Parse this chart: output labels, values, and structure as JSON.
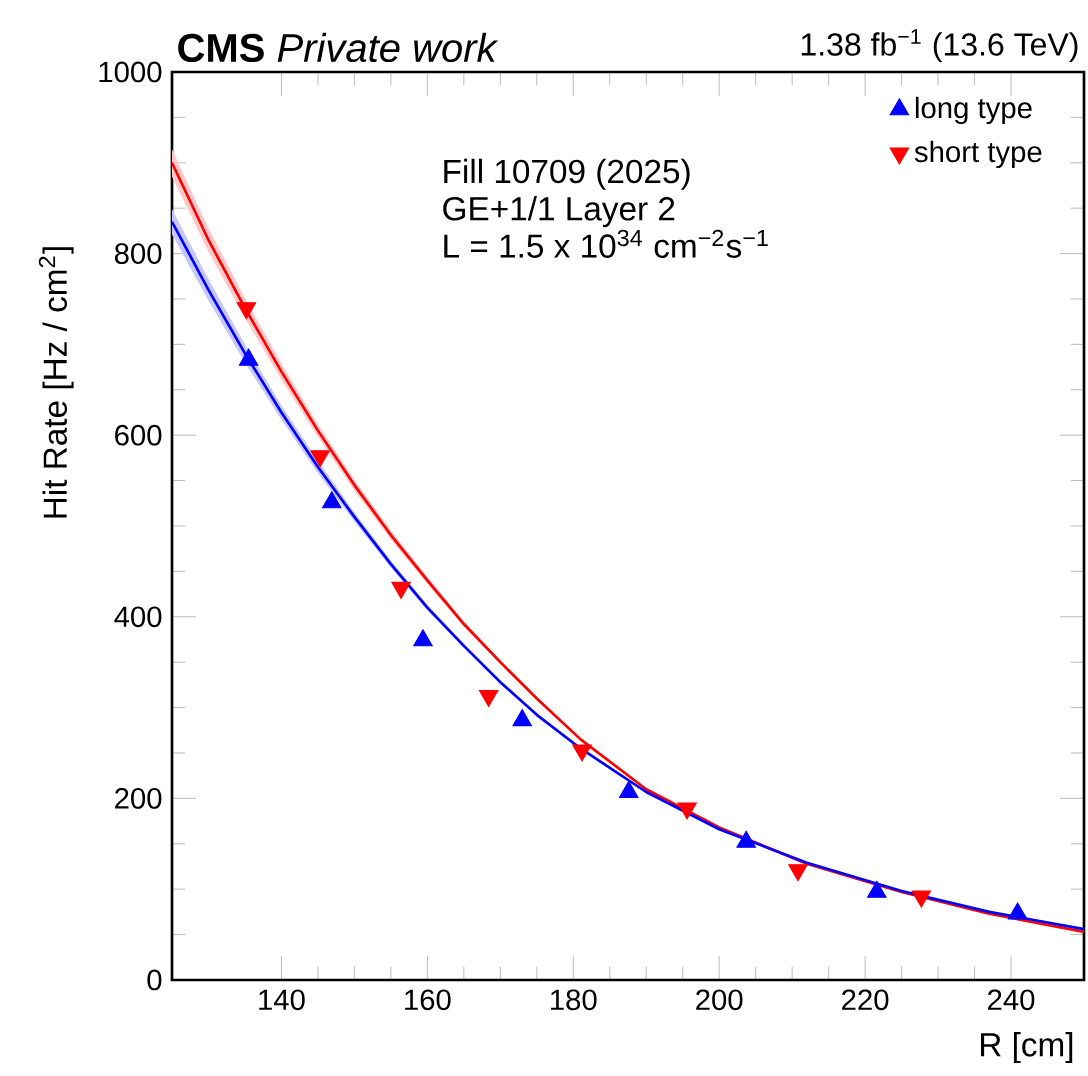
{
  "chart_data": {
    "type": "scatter",
    "title": "**CMS** *Private work*",
    "subtitle": "1.38 fb$^{−1}$ (13.6 TeV)",
    "xlabel": "R [cm]",
    "ylabel": "Hit Rate [Hz / cm$^{2}$]",
    "annotations": [
      "Fill 10709 (2025)",
      "GE+1/1 Layer 2",
      "L = 1.5 x 10$^{34}$ cm$^{−2}$s$^{−1}$"
    ],
    "xlim": [
      125,
      250
    ],
    "ylim": [
      0,
      1000
    ],
    "xticks": [
      140,
      160,
      180,
      200,
      220,
      240
    ],
    "yticks": [
      0,
      200,
      400,
      600,
      800,
      1000
    ],
    "legend": "top right",
    "grid": false,
    "series": [
      {
        "type": "line",
        "color": "#ff0000",
        "marker": "none",
        "x": [
          125,
          130,
          135,
          140,
          145,
          150,
          155,
          160,
          165,
          170,
          175,
          181,
          190,
          200,
          212,
          225,
          237,
          250
        ],
        "values": [
          900,
          815,
          740,
          670,
          605,
          545,
          490,
          440,
          392,
          350,
          310,
          265,
          210,
          168,
          128,
          97,
          73,
          53
        ],
        "lower": [
          885,
          802,
          729,
          661,
          598,
          539,
          485,
          436,
          389,
          348,
          308,
          264,
          209,
          167,
          127,
          96,
          72,
          52
        ],
        "upper": [
          915,
          828,
          751,
          679,
          612,
          551,
          495,
          444,
          395,
          352,
          312,
          266,
          211,
          169,
          129,
          98,
          74,
          54
        ]
      },
      {
        "type": "line",
        "color": "#0000ff",
        "marker": "none",
        "x": [
          125,
          130,
          135,
          140,
          145,
          150,
          155,
          160,
          165,
          170,
          175,
          181,
          190,
          200,
          212,
          225,
          237,
          250
        ],
        "values": [
          835,
          760,
          690,
          625,
          565,
          510,
          458,
          410,
          368,
          328,
          292,
          255,
          207,
          166,
          129,
          98,
          75,
          56
        ],
        "lower": [
          821,
          748,
          680,
          617,
          558,
          505,
          454,
          407,
          366,
          326,
          291,
          254,
          206,
          165,
          128,
          97,
          74,
          55
        ],
        "upper": [
          849,
          772,
          700,
          633,
          572,
          515,
          462,
          413,
          370,
          330,
          293,
          256,
          208,
          167,
          130,
          99,
          76,
          57
        ]
      },
      {
        "name": "long type",
        "color": "#0000ff",
        "marker": "triangle",
        "x": [
          135.5,
          146.9,
          159.4,
          173.0,
          187.6,
          203.7,
          221.6,
          240.9
        ],
        "values": [
          683,
          526,
          374,
          286,
          207,
          152,
          97,
          73
        ]
      },
      {
        "name": "short type",
        "color": "#ff0000",
        "marker": "triangle-down",
        "x": [
          135.2,
          145.3,
          156.4,
          168.4,
          181.2,
          195.6,
          210.8,
          227.7
        ],
        "values": [
          740,
          577,
          432,
          313,
          253,
          189,
          121,
          92
        ]
      }
    ]
  }
}
